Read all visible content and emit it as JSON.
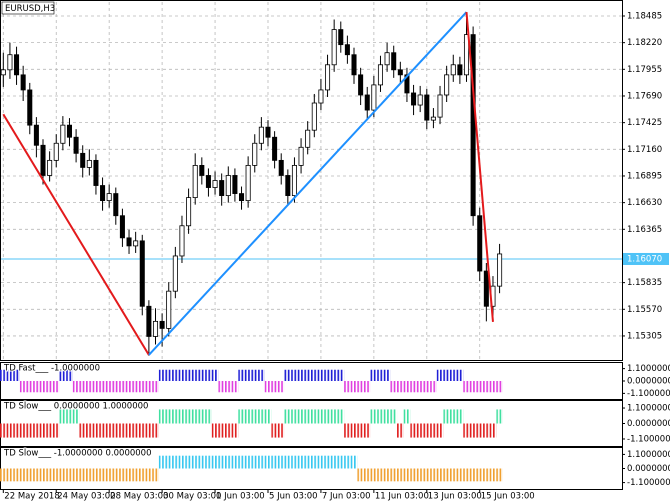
{
  "chart_data": [
    {
      "type": "candlestick",
      "title": "EURUSD,H3",
      "open": [
        1.179,
        1.1795,
        1.181,
        1.179,
        1.1775,
        1.174,
        1.172,
        1.169,
        1.1705,
        1.1722,
        1.174,
        1.1728,
        1.1712,
        1.1698,
        1.1705,
        1.168,
        1.1665,
        1.1672,
        1.165,
        1.1628,
        1.162,
        1.1625,
        1.156,
        1.153,
        1.1545,
        1.1538,
        1.1575,
        1.161,
        1.164,
        1.1668,
        1.17,
        1.169,
        1.1678,
        1.1685,
        1.167,
        1.169,
        1.1672,
        1.1665,
        1.17,
        1.1722,
        1.1738,
        1.1728,
        1.1705,
        1.169,
        1.167,
        1.17,
        1.1718,
        1.1735,
        1.1762,
        1.1775,
        1.18,
        1.1835,
        1.182,
        1.181,
        1.179,
        1.177,
        1.1755,
        1.178,
        1.18,
        1.1812,
        1.1795,
        1.179,
        1.1772,
        1.176,
        1.177,
        1.1745,
        1.1748,
        1.177,
        1.179,
        1.18,
        1.179,
        1.183,
        1.165,
        1.1595,
        1.156,
        1.158
      ],
      "high": [
        1.1812,
        1.1822,
        1.1818,
        1.1799,
        1.1782,
        1.1748,
        1.1726,
        1.1714,
        1.1731,
        1.1749,
        1.1747,
        1.1736,
        1.172,
        1.1716,
        1.1711,
        1.1688,
        1.1681,
        1.1678,
        1.1657,
        1.1636,
        1.1634,
        1.1631,
        1.1566,
        1.1558,
        1.1553,
        1.1584,
        1.1619,
        1.165,
        1.1677,
        1.1712,
        1.1708,
        1.1697,
        1.1694,
        1.1692,
        1.1699,
        1.1697,
        1.1679,
        1.1709,
        1.1731,
        1.1748,
        1.1745,
        1.1734,
        1.1712,
        1.1696,
        1.1708,
        1.1727,
        1.1744,
        1.1771,
        1.1786,
        1.181,
        1.1845,
        1.1843,
        1.1829,
        1.1817,
        1.1797,
        1.1778,
        1.1789,
        1.1809,
        1.1822,
        1.1819,
        1.1803,
        1.1797,
        1.178,
        1.1779,
        1.1776,
        1.1757,
        1.1779,
        1.1799,
        1.181,
        1.1808,
        1.1852,
        1.1838,
        1.1658,
        1.1603,
        1.159,
        1.1622
      ],
      "low": [
        1.1778,
        1.1786,
        1.178,
        1.1764,
        1.1731,
        1.1708,
        1.1681,
        1.1684,
        1.1698,
        1.1715,
        1.1719,
        1.1703,
        1.1688,
        1.169,
        1.1671,
        1.1655,
        1.1658,
        1.1641,
        1.1619,
        1.1612,
        1.1613,
        1.1551,
        1.1511,
        1.1522,
        1.152,
        1.153,
        1.1568,
        1.1603,
        1.1632,
        1.1661,
        1.1681,
        1.1669,
        1.1671,
        1.166,
        1.1663,
        1.1664,
        1.1656,
        1.1658,
        1.1693,
        1.1715,
        1.1719,
        1.1697,
        1.1681,
        1.166,
        1.1663,
        1.1692,
        1.1711,
        1.1728,
        1.1755,
        1.1768,
        1.1793,
        1.1812,
        1.1801,
        1.1781,
        1.176,
        1.1745,
        1.1748,
        1.1773,
        1.1793,
        1.1787,
        1.1781,
        1.1763,
        1.175,
        1.1753,
        1.1736,
        1.1737,
        1.1741,
        1.1763,
        1.1783,
        1.1781,
        1.1783,
        1.164,
        1.1585,
        1.1545,
        1.155,
        1.1573
      ],
      "close": [
        1.1795,
        1.181,
        1.179,
        1.1775,
        1.174,
        1.172,
        1.169,
        1.1705,
        1.1722,
        1.174,
        1.1728,
        1.1712,
        1.1698,
        1.1705,
        1.168,
        1.1665,
        1.1672,
        1.165,
        1.1628,
        1.162,
        1.1625,
        1.156,
        1.153,
        1.1545,
        1.1538,
        1.1575,
        1.161,
        1.164,
        1.1668,
        1.17,
        1.169,
        1.1678,
        1.1685,
        1.167,
        1.169,
        1.1672,
        1.1665,
        1.17,
        1.1722,
        1.1738,
        1.1728,
        1.1705,
        1.169,
        1.167,
        1.17,
        1.1718,
        1.1735,
        1.1762,
        1.1775,
        1.18,
        1.1835,
        1.182,
        1.181,
        1.179,
        1.177,
        1.1755,
        1.178,
        1.18,
        1.1812,
        1.1795,
        1.179,
        1.1772,
        1.176,
        1.177,
        1.1745,
        1.1748,
        1.177,
        1.179,
        1.18,
        1.179,
        1.183,
        1.165,
        1.1595,
        1.156,
        1.158,
        1.1612
      ],
      "bull_color": "#ffffff",
      "bear_color": "#000000",
      "xlim": [
        -0.5,
        93.5
      ],
      "xticks": [
        {
          "value": 0,
          "label": "22 May 2018"
        },
        {
          "value": 8,
          "label": "24 May 03:00"
        },
        {
          "value": 16,
          "label": "28 May 03:00"
        },
        {
          "value": 24,
          "label": "30 May 03:00"
        },
        {
          "value": 32,
          "label": "1 Jun 03:00"
        },
        {
          "value": 40,
          "label": "5 Jun 03:00"
        },
        {
          "value": 48,
          "label": "7 Jun 03:00"
        },
        {
          "value": 56,
          "label": "11 Jun 03:00"
        },
        {
          "value": 64,
          "label": "13 Jun 03:00"
        },
        {
          "value": 72,
          "label": "15 Jun 03:00"
        }
      ],
      "ylim": [
        1.15066,
        1.18624
      ],
      "yticks": [
        1.18485,
        {
          "value": 1.1822,
          "label": "1.18220"
        },
        1.17955,
        {
          "value": 1.1769,
          "label": "1.17690"
        },
        1.17425,
        {
          "value": 1.1716,
          "label": "1.17160"
        },
        1.16895,
        {
          "value": 1.1663,
          "label": "1.16630"
        },
        1.16365,
        1.15835,
        {
          "value": 1.1557,
          "label": "1.15570"
        },
        1.15305
      ],
      "grid": true,
      "current_price": {
        "value": 1.1607,
        "label": "1.16070"
      },
      "current_color": "#4fc3f7",
      "lines": [
        {
          "x": [
            0,
            22
          ],
          "values": [
            1.17508,
            1.15116
          ],
          "color": "#e31a1c"
        },
        {
          "x": [
            22,
            70
          ],
          "values": [
            1.15116,
            1.18524
          ],
          "color": "#1e90ff"
        },
        {
          "x": [
            70,
            74
          ],
          "values": [
            1.18524,
            1.15445
          ],
          "color": "#e31a1c"
        }
      ]
    },
    {
      "type": "bar",
      "title": "TD Fast___ -1.0000000",
      "values": [
        1,
        1,
        1,
        -1,
        -1,
        -1,
        -1,
        -1,
        -1,
        1,
        1,
        -1,
        -1,
        -1,
        -1,
        -1,
        -1,
        -1,
        -1,
        -1,
        -1,
        -1,
        -1,
        -1,
        1,
        1,
        1,
        1,
        1,
        1,
        1,
        1,
        1,
        -1,
        -1,
        -1,
        1,
        1,
        1,
        1,
        -1,
        -1,
        -1,
        1,
        1,
        1,
        1,
        1,
        1,
        1,
        1,
        1,
        -1,
        -1,
        -1,
        -1,
        1,
        1,
        1,
        -1,
        -1,
        -1,
        -1,
        -1,
        -1,
        -1,
        1,
        1,
        1,
        1,
        -1,
        -1,
        -1,
        -1,
        -1,
        -1
      ],
      "up_color": "#1f1fd6",
      "down_color": "#e040e0",
      "ylim": [
        -1.6,
        1.6
      ],
      "yticks": [
        {
          "value": 1.1,
          "label": "1.1000000"
        },
        {
          "value": 0,
          "label": "0.0000000"
        },
        {
          "value": -1.1,
          "label": "-1.1000000"
        }
      ]
    },
    {
      "type": "bar",
      "title": "TD Slow___ 0.0000000 1.0000000",
      "values": [
        -1,
        -1,
        -1,
        -1,
        -1,
        -1,
        -1,
        -1,
        -1,
        1,
        1,
        1,
        -1,
        -1,
        -1,
        -1,
        -1,
        -1,
        -1,
        -1,
        -1,
        -1,
        -1,
        -1,
        1,
        1,
        1,
        1,
        1,
        1,
        1,
        1,
        -1,
        -1,
        -1,
        -1,
        1,
        1,
        1,
        1,
        1,
        -1,
        -1,
        1,
        1,
        1,
        1,
        1,
        1,
        1,
        1,
        1,
        -1,
        -1,
        -1,
        -1,
        1,
        1,
        1,
        1,
        -1,
        1,
        -1,
        -1,
        -1,
        -1,
        -1,
        1,
        1,
        1,
        -1,
        -1,
        -1,
        -1,
        -1,
        1
      ],
      "up_color": "#40e0a0",
      "down_color": "#e02020",
      "ylim": [
        -1.6,
        1.6
      ],
      "yticks": [
        {
          "value": 1.1,
          "label": "1.1000000"
        },
        {
          "value": 0,
          "label": "0.0000000"
        },
        {
          "value": -1.1,
          "label": "-1.1000000"
        }
      ]
    },
    {
      "type": "bar",
      "title": "TD Slow___ -1.0000000 0.0000000",
      "values": [
        -1,
        -1,
        -1,
        -1,
        -1,
        -1,
        -1,
        -1,
        -1,
        -1,
        -1,
        -1,
        -1,
        -1,
        -1,
        -1,
        -1,
        -1,
        -1,
        -1,
        -1,
        -1,
        -1,
        -1,
        1,
        1,
        1,
        1,
        1,
        1,
        1,
        1,
        1,
        1,
        1,
        1,
        1,
        1,
        1,
        1,
        1,
        1,
        1,
        1,
        1,
        1,
        1,
        1,
        1,
        1,
        1,
        1,
        1,
        1,
        -1,
        -1,
        -1,
        -1,
        -1,
        -1,
        -1,
        -1,
        -1,
        -1,
        -1,
        -1,
        -1,
        -1,
        -1,
        -1,
        -1,
        -1,
        -1,
        -1,
        -1,
        -1
      ],
      "up_color": "#38c8f0",
      "down_color": "#f0a030",
      "ylim": [
        -1.6,
        1.6
      ],
      "yticks": [
        {
          "value": 1.1,
          "label": "1.1000000"
        },
        {
          "value": 0,
          "label": "0.0000000"
        },
        {
          "value": -1.1,
          "label": "-1.1000000"
        }
      ]
    }
  ]
}
